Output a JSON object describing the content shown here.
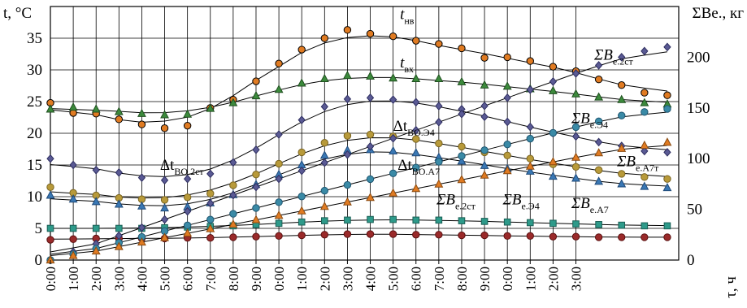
{
  "chart_data": {
    "type": "scatter",
    "left_axis": {
      "label": "t, °C",
      "range": [
        0,
        40
      ],
      "ticks": [
        0,
        5,
        10,
        15,
        20,
        25,
        30,
        35
      ]
    },
    "right_axis": {
      "label": "ΣBe., кг",
      "range": [
        0,
        250
      ],
      "ticks": [
        0,
        50,
        100,
        150,
        200
      ]
    },
    "x_axis": {
      "label": "τ, ч",
      "range": [
        0,
        27.5
      ],
      "tick_labels": [
        "0:00",
        "1:00",
        "2:00",
        "3:00",
        "4:00",
        "5:00",
        "6:00",
        "7:00",
        "8:00",
        "9:00",
        "0:00",
        "1:00",
        "2:00",
        "3:00",
        "4:00",
        "5:00",
        "6:00",
        "7:00",
        "8:00",
        "9:00",
        "0:00",
        "1:00",
        "2:00",
        "3:00"
      ]
    },
    "grid": true,
    "series": [
      {
        "key": "t_nv",
        "axis": "left",
        "marker": "circle",
        "color": "#e07b22",
        "edge": "#000000",
        "x": [
          0,
          1,
          2,
          3,
          4,
          5,
          6,
          7,
          8,
          9,
          10,
          11,
          12,
          13,
          14,
          15,
          16,
          17,
          18,
          19,
          20,
          21,
          22,
          23,
          24,
          25,
          26,
          27
        ],
        "y": [
          24.8,
          23.2,
          23.1,
          22.2,
          21.4,
          20.8,
          21.2,
          24.0,
          25.3,
          28.2,
          31.0,
          33.2,
          35.0,
          36.3,
          35.7,
          35.3,
          34.6,
          34.1,
          33.4,
          31.9,
          32.0,
          31.4,
          30.5,
          29.8,
          28.5,
          27.6,
          26.4,
          26.0
        ]
      },
      {
        "key": "t_vh",
        "axis": "left",
        "marker": "triangle",
        "color": "#3c8a3c",
        "edge": "#1f4f1f",
        "x": [
          0,
          1,
          2,
          3,
          4,
          5,
          6,
          7,
          8,
          9,
          10,
          11,
          12,
          13,
          14,
          15,
          16,
          17,
          18,
          19,
          20,
          21,
          22,
          23,
          24,
          25,
          26,
          27
        ],
        "y": [
          23.8,
          24.1,
          23.8,
          23.4,
          23.1,
          22.9,
          23.0,
          23.9,
          24.8,
          25.9,
          26.9,
          27.9,
          28.6,
          29.1,
          29.0,
          28.7,
          28.6,
          28.6,
          28.1,
          27.6,
          27.4,
          27.0,
          26.7,
          26.2,
          25.7,
          25.3,
          24.8,
          24.6
        ]
      },
      {
        "key": "dt_vo2st",
        "axis": "left",
        "marker": "diamond",
        "color": "#5a5a94",
        "edge": "#2e2e60",
        "x": [
          0,
          1,
          2,
          3,
          4,
          5,
          6,
          7,
          8,
          9,
          10,
          11,
          12,
          13,
          14,
          15,
          16,
          17,
          18,
          19,
          20,
          21,
          22,
          23,
          24,
          25,
          26,
          27
        ],
        "y": [
          16.0,
          15.0,
          14.2,
          13.8,
          13.0,
          12.6,
          12.8,
          13.6,
          15.4,
          17.4,
          19.8,
          22.1,
          24.2,
          25.4,
          25.6,
          25.3,
          24.9,
          24.3,
          23.8,
          22.6,
          21.8,
          21.0,
          20.0,
          19.5,
          18.6,
          18.0,
          17.2,
          17.0
        ]
      },
      {
        "key": "dt_voe4",
        "axis": "left",
        "marker": "circle",
        "color": "#b89a3a",
        "edge": "#7a6420",
        "x": [
          0,
          1,
          2,
          3,
          4,
          5,
          6,
          7,
          8,
          9,
          10,
          11,
          12,
          13,
          14,
          15,
          16,
          17,
          18,
          19,
          20,
          21,
          22,
          23,
          24,
          25,
          26,
          27
        ],
        "y": [
          11.5,
          10.6,
          10.2,
          9.8,
          9.6,
          9.5,
          9.9,
          10.5,
          11.8,
          13.5,
          15.2,
          17.0,
          18.5,
          19.6,
          19.8,
          19.5,
          19.1,
          18.4,
          17.9,
          17.0,
          16.5,
          16.0,
          15.1,
          14.7,
          14.2,
          13.6,
          13.1,
          12.8
        ]
      },
      {
        "key": "dt_voa7",
        "axis": "left",
        "marker": "triangle",
        "color": "#3a78b4",
        "edge": "#1f4a7a",
        "x": [
          0,
          1,
          2,
          3,
          4,
          5,
          6,
          7,
          8,
          9,
          10,
          11,
          12,
          13,
          14,
          15,
          16,
          17,
          18,
          19,
          20,
          21,
          22,
          23,
          24,
          25,
          26,
          27
        ],
        "y": [
          10.2,
          9.6,
          9.2,
          8.8,
          8.5,
          8.2,
          8.4,
          9.0,
          10.3,
          11.9,
          13.5,
          15.0,
          16.5,
          17.3,
          17.4,
          17.2,
          16.9,
          16.2,
          15.6,
          14.9,
          14.4,
          14.0,
          13.2,
          12.9,
          12.4,
          12.0,
          11.6,
          11.4
        ]
      },
      {
        "key": "B_2st_left",
        "axis": "left",
        "marker": "square",
        "color": "#2e9a8a",
        "edge": "#1a5f55",
        "x": [
          0,
          1,
          2,
          3,
          4,
          5,
          6,
          7,
          8,
          9,
          10,
          11,
          12,
          13,
          14,
          15,
          16,
          17,
          18,
          19,
          20,
          21,
          22,
          23,
          24,
          25,
          26,
          27
        ],
        "y": [
          5.0,
          5.0,
          5.0,
          5.0,
          5.0,
          5.1,
          5.2,
          5.3,
          5.4,
          5.6,
          5.8,
          6.0,
          6.2,
          6.3,
          6.4,
          6.4,
          6.3,
          6.3,
          6.2,
          6.1,
          6.0,
          5.9,
          5.8,
          5.7,
          5.6,
          5.5,
          5.4,
          5.4
        ]
      },
      {
        "key": "B_e4_left",
        "axis": "left",
        "marker": "circle",
        "color": "#9a2a2a",
        "edge": "#5a1010",
        "x": [
          0,
          1,
          2,
          3,
          4,
          5,
          6,
          7,
          8,
          9,
          10,
          11,
          12,
          13,
          14,
          15,
          16,
          17,
          18,
          19,
          20,
          21,
          22,
          23,
          24,
          25,
          26,
          27
        ],
        "y": [
          3.2,
          3.3,
          3.4,
          3.4,
          3.4,
          3.4,
          3.5,
          3.5,
          3.6,
          3.7,
          3.8,
          3.9,
          4.0,
          4.1,
          4.1,
          4.1,
          4.0,
          4.0,
          3.9,
          3.9,
          3.8,
          3.8,
          3.7,
          3.7,
          3.6,
          3.6,
          3.6,
          3.6
        ]
      },
      {
        "key": "cum_2st",
        "axis": "right",
        "marker": "diamond",
        "color": "#5a5a94",
        "edge": "#2e2e60",
        "x": [
          0,
          1,
          2,
          3,
          4,
          5,
          6,
          7,
          8,
          9,
          10,
          11,
          12,
          13,
          14,
          15,
          16,
          17,
          18,
          19,
          20,
          21,
          22,
          23,
          24,
          25,
          26,
          27
        ],
        "y": [
          0,
          8,
          16,
          24,
          32,
          40,
          48,
          56,
          64,
          72,
          80,
          88,
          96,
          104,
          112,
          120,
          128,
          136,
          144,
          152,
          160,
          168,
          176,
          184,
          192,
          200,
          206,
          210
        ]
      },
      {
        "key": "cum_e4",
        "axis": "right",
        "marker": "circle",
        "color": "#3a8aa6",
        "edge": "#1e5570",
        "x": [
          0,
          1,
          2,
          3,
          4,
          5,
          6,
          7,
          8,
          9,
          10,
          11,
          12,
          13,
          14,
          15,
          16,
          17,
          18,
          19,
          20,
          21,
          22,
          23,
          24,
          25,
          26,
          27
        ],
        "y": [
          0,
          5.7,
          11.4,
          17.1,
          22.8,
          28.5,
          34.2,
          39.9,
          45.6,
          51.3,
          57.0,
          62.7,
          68.4,
          74.1,
          79.8,
          85.5,
          91.2,
          96.9,
          102.6,
          108.3,
          114.0,
          119.7,
          125.4,
          131.1,
          136.8,
          142.5,
          146.0,
          149.0
        ]
      },
      {
        "key": "cum_a7",
        "axis": "right",
        "marker": "triangle",
        "color": "#e07b22",
        "edge": "#8a4a10",
        "x": [
          0,
          1,
          2,
          3,
          4,
          5,
          6,
          7,
          8,
          9,
          10,
          11,
          12,
          13,
          14,
          15,
          16,
          17,
          18,
          19,
          20,
          21,
          22,
          23,
          24,
          25,
          26,
          27
        ],
        "y": [
          0,
          4.4,
          8.8,
          13.2,
          17.6,
          22.0,
          26.4,
          30.8,
          35.2,
          39.6,
          44.0,
          48.4,
          52.8,
          57.2,
          61.6,
          66.0,
          70.4,
          74.8,
          79.2,
          83.6,
          88.0,
          92.4,
          96.8,
          101.2,
          105.6,
          110.0,
          113.0,
          116.0
        ]
      }
    ],
    "annotations": [
      {
        "key": "ann_tnv",
        "base": "t",
        "sub": "нв",
        "italic": true,
        "x": 15.3,
        "axis": "left",
        "y": 38.0
      },
      {
        "key": "ann_tvh",
        "base": "t",
        "sub": "вх",
        "italic": true,
        "x": 15.3,
        "axis": "left",
        "y": 30.4
      },
      {
        "key": "ann_dt2st",
        "base": "Δt",
        "sub": "ВО.2ст",
        "italic": false,
        "x": 4.8,
        "axis": "left",
        "y": 14.2
      },
      {
        "key": "ann_dte4",
        "base": "Δt",
        "sub": "ВО.Э4",
        "italic": false,
        "x": 15.0,
        "axis": "left",
        "y": 20.4
      },
      {
        "key": "ann_dta7",
        "base": "Δt",
        "sub": "ВО.А7",
        "italic": false,
        "x": 15.2,
        "axis": "left",
        "y": 14.2
      },
      {
        "key": "ann_B2st_top",
        "base": "ΣB",
        "sub": "e.2ст",
        "italic": true,
        "x": 23.8,
        "axis": "left",
        "y": 31.6
      },
      {
        "key": "ann_Be4_top",
        "base": "ΣB",
        "sub": "e.Э4",
        "italic": true,
        "x": 22.8,
        "axis": "left",
        "y": 21.6
      },
      {
        "key": "ann_Ba7_top",
        "base": "ΣB",
        "sub": "e.А7т",
        "italic": true,
        "x": 24.8,
        "axis": "left",
        "y": 14.8
      },
      {
        "key": "ann_B2st_low",
        "base": "ΣB",
        "sub": "e.2ст",
        "italic": true,
        "x": 16.9,
        "axis": "left",
        "y": 8.8
      },
      {
        "key": "ann_Be4_low",
        "base": "ΣB",
        "sub": "e.Э4",
        "italic": true,
        "x": 19.8,
        "axis": "left",
        "y": 8.8
      },
      {
        "key": "ann_Ba7_low",
        "base": "ΣB",
        "sub": "e.А7",
        "italic": true,
        "x": 22.8,
        "axis": "left",
        "y": 8.2
      }
    ]
  }
}
